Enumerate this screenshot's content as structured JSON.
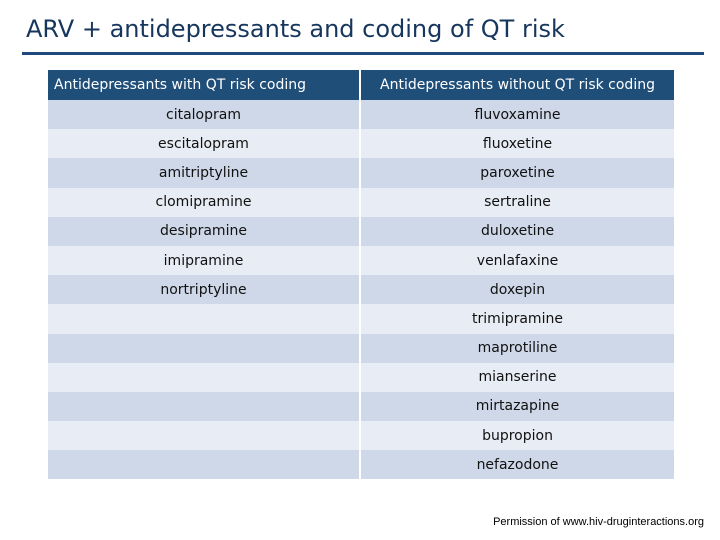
{
  "slide": {
    "title": "ARV + antidepressants and coding of QT risk",
    "credit": "Permission of www.hiv-druginteractions.org"
  },
  "table": {
    "headers": [
      "Antidepressants  with QT risk coding",
      "Antidepressants without QT risk coding"
    ],
    "rows": [
      [
        "citalopram",
        "fluvoxamine"
      ],
      [
        "escitalopram",
        "fluoxetine"
      ],
      [
        "amitriptyline",
        "paroxetine"
      ],
      [
        "clomipramine",
        "sertraline"
      ],
      [
        "desipramine",
        "duloxetine"
      ],
      [
        "imipramine",
        "venlafaxine"
      ],
      [
        "nortriptyline",
        "doxepin"
      ],
      [
        "",
        "trimipramine"
      ],
      [
        "",
        "maprotiline"
      ],
      [
        "",
        "mianserine"
      ],
      [
        "",
        "mirtazapine"
      ],
      [
        "",
        "bupropion"
      ],
      [
        "",
        "nefazodone"
      ]
    ]
  },
  "colors": {
    "title": "#17365d",
    "header_bg": "#1f4e79",
    "row_odd": "#cfd8e8",
    "row_even": "#e8ecf4"
  }
}
